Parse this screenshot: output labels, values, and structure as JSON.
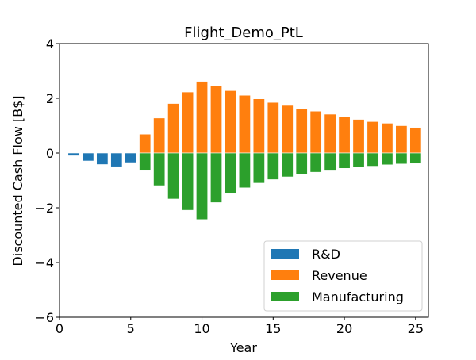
{
  "chart_data": {
    "type": "bar",
    "title": "Flight_Demo_PtL",
    "xlabel": "Year",
    "ylabel": "Discounted Cash Flow [B$]",
    "xlim": [
      0,
      25.9
    ],
    "ylim": [
      -6,
      4
    ],
    "xticks": [
      0,
      5,
      10,
      15,
      20,
      25
    ],
    "yticks": [
      -6,
      -4,
      -2,
      0,
      2,
      4
    ],
    "xtick_labels": [
      "0",
      "5",
      "10",
      "15",
      "20",
      "25"
    ],
    "ytick_labels": [
      "−6",
      "−4",
      "−2",
      "0",
      "2",
      "4"
    ],
    "grid": false,
    "legend_position": "lower-right",
    "series": [
      {
        "name": "R&D",
        "color": "#1f77b4",
        "x": [
          1,
          2,
          3,
          4,
          5
        ],
        "values": [
          -0.1,
          -0.29,
          -0.42,
          -0.5,
          -0.35
        ]
      },
      {
        "name": "Revenue",
        "color": "#ff7f0e",
        "x": [
          6,
          7,
          8,
          9,
          10,
          11,
          12,
          13,
          14,
          15,
          16,
          17,
          18,
          19,
          20,
          21,
          22,
          23,
          24,
          25
        ],
        "values": [
          0.69,
          1.28,
          1.81,
          2.23,
          2.62,
          2.45,
          2.28,
          2.11,
          1.98,
          1.85,
          1.74,
          1.63,
          1.53,
          1.42,
          1.33,
          1.23,
          1.15,
          1.09,
          1.0,
          0.93
        ]
      },
      {
        "name": "Manufacturing",
        "color": "#2ca02c",
        "x": [
          6,
          7,
          8,
          9,
          10,
          11,
          12,
          13,
          14,
          15,
          16,
          17,
          18,
          19,
          20,
          21,
          22,
          23,
          24,
          25
        ],
        "values": [
          -0.64,
          -1.19,
          -1.68,
          -2.09,
          -2.43,
          -1.81,
          -1.48,
          -1.27,
          -1.1,
          -0.97,
          -0.87,
          -0.78,
          -0.7,
          -0.65,
          -0.56,
          -0.51,
          -0.48,
          -0.43,
          -0.4,
          -0.38
        ]
      }
    ]
  }
}
